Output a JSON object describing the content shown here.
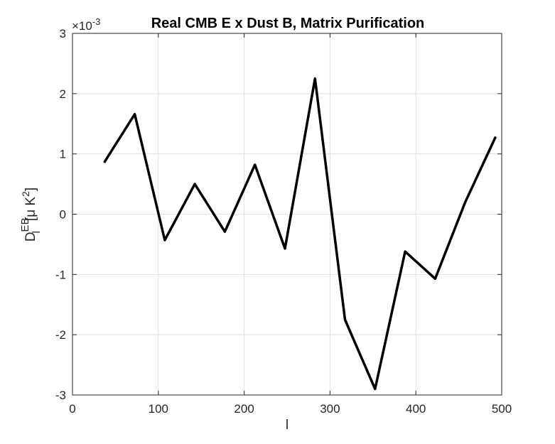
{
  "chart_data": {
    "type": "line",
    "title": "Real CMB E x Dust B, Matrix Purification",
    "xlabel": "l",
    "ylabel": {
      "base": "D",
      "superscript": "EB",
      "subscript": "l",
      "unit_open": "[",
      "unit_mu": "μ",
      "unit_k": " K",
      "unit_power": "2",
      "unit_close": "]"
    },
    "y_exponent": {
      "prefix": "×10",
      "power": "-3"
    },
    "xlim": [
      0,
      500
    ],
    "ylim": [
      -3,
      3
    ],
    "xticks": [
      0,
      100,
      200,
      300,
      400,
      500
    ],
    "yticks": [
      -3,
      -2,
      -1,
      0,
      1,
      2,
      3
    ],
    "grid": true,
    "series": [
      {
        "name": "EB",
        "color": "#000000",
        "x": [
          37.5,
          72.5,
          107.5,
          142.5,
          177.5,
          212.5,
          247.5,
          282.5,
          317.5,
          352.5,
          387.5,
          422.5,
          457.5,
          492.5
        ],
        "y": [
          0.87,
          1.66,
          -0.43,
          0.5,
          -0.29,
          0.82,
          -0.57,
          2.25,
          -1.75,
          -2.9,
          -0.62,
          -1.07,
          0.2,
          1.27
        ]
      }
    ]
  }
}
